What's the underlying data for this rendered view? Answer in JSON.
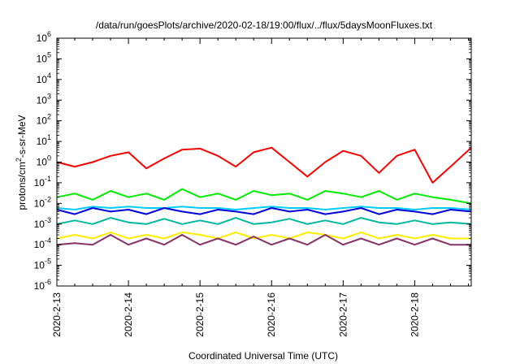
{
  "chart_data": {
    "type": "line",
    "title": "/data/run/goesPlots/archive/2020-02-18/19:00/flux/../flux/5daysMoonFluxes.txt",
    "xlabel": "Coordinated Universal Time (UTC)",
    "ylabel": "protons/cm²-s-sr-MeV",
    "ylabel_base": "protons/cm",
    "ylabel_sup": "2",
    "ylabel_rest": "-s-sr-MeV",
    "yscale": "log",
    "ylim": [
      1e-06,
      1000000.0
    ],
    "xlim": [
      "2020-02-13",
      "2020-02-18 19:00"
    ],
    "grid": false,
    "legend": "none",
    "x_ticks": [
      "2020-2-13",
      "2020-2-14",
      "2020-2-15",
      "2020-2-16",
      "2020-2-17",
      "2020-2-18"
    ],
    "y_ticks": [
      {
        "base": "10",
        "exp": "-6"
      },
      {
        "base": "10",
        "exp": "-5"
      },
      {
        "base": "10",
        "exp": "-4"
      },
      {
        "base": "10",
        "exp": "-3"
      },
      {
        "base": "10",
        "exp": "-2"
      },
      {
        "base": "10",
        "exp": "-1"
      },
      {
        "base": "10",
        "exp": "0"
      },
      {
        "base": "10",
        "exp": "1"
      },
      {
        "base": "10",
        "exp": "2"
      },
      {
        "base": "10",
        "exp": "3"
      },
      {
        "base": "10",
        "exp": "4"
      },
      {
        "base": "10",
        "exp": "5"
      },
      {
        "base": "10",
        "exp": "6"
      }
    ],
    "x_days": [
      0,
      0.25,
      0.5,
      0.75,
      1,
      1.25,
      1.5,
      1.75,
      2,
      2.25,
      2.5,
      2.75,
      3,
      3.25,
      3.5,
      3.75,
      4,
      4.25,
      4.5,
      4.75,
      5,
      5.25,
      5.5,
      5.79
    ],
    "series": [
      {
        "color": "#ff0000",
        "values": [
          1.0,
          0.6,
          1.0,
          2.0,
          3.0,
          0.5,
          1.5,
          4.0,
          4.5,
          2.0,
          0.6,
          3.0,
          5.0,
          1.0,
          0.2,
          1.0,
          3.5,
          2.0,
          0.3,
          2.0,
          4.0,
          0.1,
          0.6,
          5.0
        ]
      },
      {
        "color": "#00ee00",
        "values": [
          0.02,
          0.03,
          0.015,
          0.04,
          0.02,
          0.03,
          0.015,
          0.05,
          0.02,
          0.03,
          0.015,
          0.04,
          0.025,
          0.03,
          0.015,
          0.04,
          0.03,
          0.02,
          0.04,
          0.015,
          0.03,
          0.02,
          0.015,
          0.01
        ]
      },
      {
        "color": "#0000dd",
        "values": [
          0.005,
          0.003,
          0.006,
          0.004,
          0.005,
          0.003,
          0.006,
          0.004,
          0.003,
          0.005,
          0.004,
          0.003,
          0.006,
          0.004,
          0.005,
          0.003,
          0.004,
          0.006,
          0.003,
          0.005,
          0.004,
          0.003,
          0.005,
          0.004
        ]
      },
      {
        "color": "#00ccff",
        "values": [
          0.006,
          0.005,
          0.007,
          0.006,
          0.007,
          0.006,
          0.006,
          0.007,
          0.006,
          0.006,
          0.005,
          0.006,
          0.007,
          0.006,
          0.006,
          0.005,
          0.006,
          0.007,
          0.006,
          0.006,
          0.005,
          0.006,
          0.006,
          0.005
        ]
      },
      {
        "color": "#00b8a0",
        "values": [
          0.001,
          0.0015,
          0.001,
          0.002,
          0.0012,
          0.001,
          0.0018,
          0.001,
          0.0015,
          0.001,
          0.002,
          0.001,
          0.0012,
          0.0018,
          0.001,
          0.0015,
          0.001,
          0.002,
          0.0012,
          0.001,
          0.0015,
          0.001,
          0.0012,
          0.001
        ]
      },
      {
        "color": "#ffee00",
        "values": [
          0.0002,
          0.0003,
          0.0002,
          0.0004,
          0.0002,
          0.0003,
          0.0002,
          0.0004,
          0.0003,
          0.0002,
          0.0004,
          0.0002,
          0.0003,
          0.0002,
          0.0004,
          0.0003,
          0.0002,
          0.0004,
          0.0002,
          0.0003,
          0.0002,
          0.0003,
          0.0002,
          0.0002
        ]
      },
      {
        "color": "#883366",
        "values": [
          0.0001,
          0.00012,
          0.0001,
          0.0003,
          0.0001,
          0.0002,
          0.0001,
          0.0003,
          0.0001,
          0.0002,
          0.0001,
          0.00025,
          0.0001,
          0.0002,
          0.0001,
          0.0003,
          0.0001,
          0.0002,
          0.0001,
          0.0002,
          0.0001,
          0.0002,
          0.0001,
          0.0001
        ]
      }
    ]
  }
}
